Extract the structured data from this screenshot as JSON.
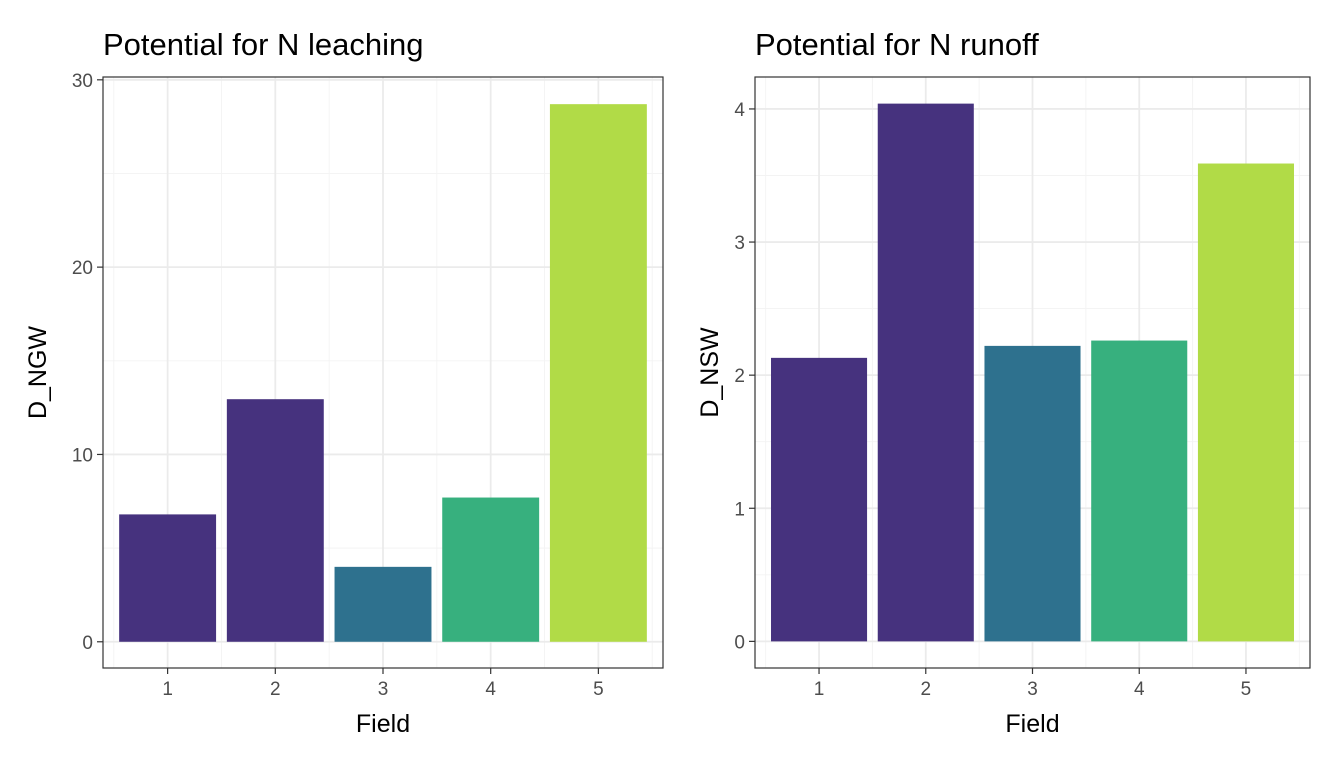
{
  "chart_data": [
    {
      "type": "bar",
      "title": "Potential for N leaching",
      "xlabel": "Field",
      "ylabel": "D_NGW",
      "categories": [
        "1",
        "2",
        "3",
        "4",
        "5"
      ],
      "values": [
        6.8,
        12.95,
        4.0,
        7.7,
        28.7
      ],
      "ylim": [
        -1.4,
        30.15
      ],
      "yticks": [
        0,
        10,
        20,
        30
      ],
      "ytick_labels": [
        "0",
        "10",
        "20",
        "30"
      ],
      "grid": true,
      "legend": "none",
      "bar_colors": [
        "#46327e",
        "#46327e",
        "#2e718e",
        "#37b07e",
        "#b1db47"
      ]
    },
    {
      "type": "bar",
      "title": "Potential for N runoff",
      "xlabel": "Field",
      "ylabel": "D_NSW",
      "categories": [
        "1",
        "2",
        "3",
        "4",
        "5"
      ],
      "values": [
        2.13,
        4.04,
        2.22,
        2.26,
        3.59
      ],
      "ylim": [
        -0.2,
        4.24
      ],
      "yticks": [
        0,
        1,
        2,
        3,
        4
      ],
      "ytick_labels": [
        "0",
        "1",
        "2",
        "3",
        "4"
      ],
      "grid": true,
      "legend": "none",
      "bar_colors": [
        "#46327e",
        "#46327e",
        "#2e718e",
        "#37b07e",
        "#b1db47"
      ]
    }
  ]
}
